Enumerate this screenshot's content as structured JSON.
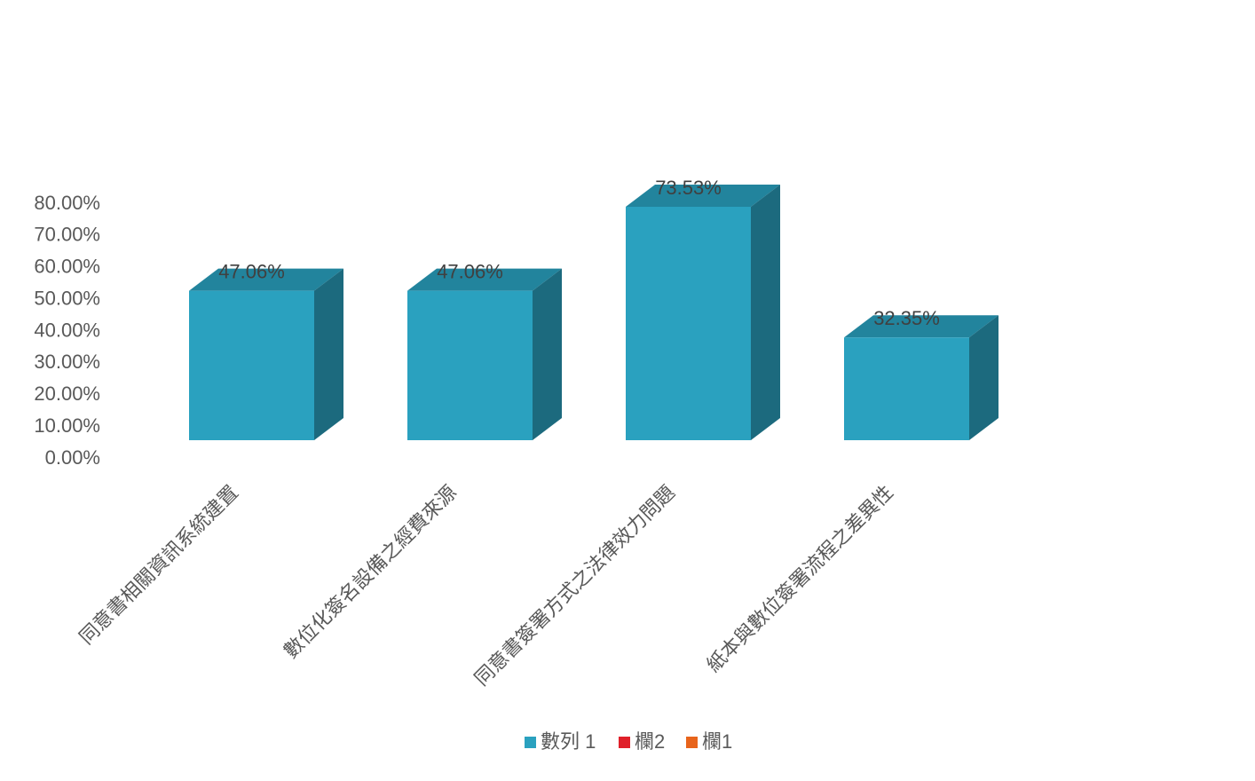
{
  "chart_data": {
    "type": "bar3d",
    "categories": [
      "同意書相關資訊系統建置",
      "數位化簽名設備之經費來源",
      "同意書簽署方式之法律效力問題",
      "紙本與數位簽署流程之差異性"
    ],
    "series": [
      {
        "name": "數列 1",
        "color": "#2aa1bf",
        "values": [
          47.06,
          47.06,
          73.53,
          32.35
        ],
        "value_labels": [
          "47.06%",
          "47.06%",
          "73.53%",
          "32.35%"
        ]
      },
      {
        "name": "欄2",
        "color": "#e0202a",
        "values": [
          null,
          null,
          null,
          null
        ]
      },
      {
        "name": "欄1",
        "color": "#e8641b",
        "values": [
          null,
          null,
          null,
          null
        ]
      }
    ],
    "ylim": [
      0,
      80
    ],
    "yticks": [
      {
        "value": 0,
        "label": "0.00%"
      },
      {
        "value": 10,
        "label": "10.00%"
      },
      {
        "value": 20,
        "label": "20.00%"
      },
      {
        "value": 30,
        "label": "30.00%"
      },
      {
        "value": 40,
        "label": "40.00%"
      },
      {
        "value": 50,
        "label": "50.00%"
      },
      {
        "value": 60,
        "label": "60.00%"
      },
      {
        "value": 70,
        "label": "70.00%"
      },
      {
        "value": 80,
        "label": "80.00%"
      }
    ],
    "legend": "bottom",
    "grid": false
  }
}
